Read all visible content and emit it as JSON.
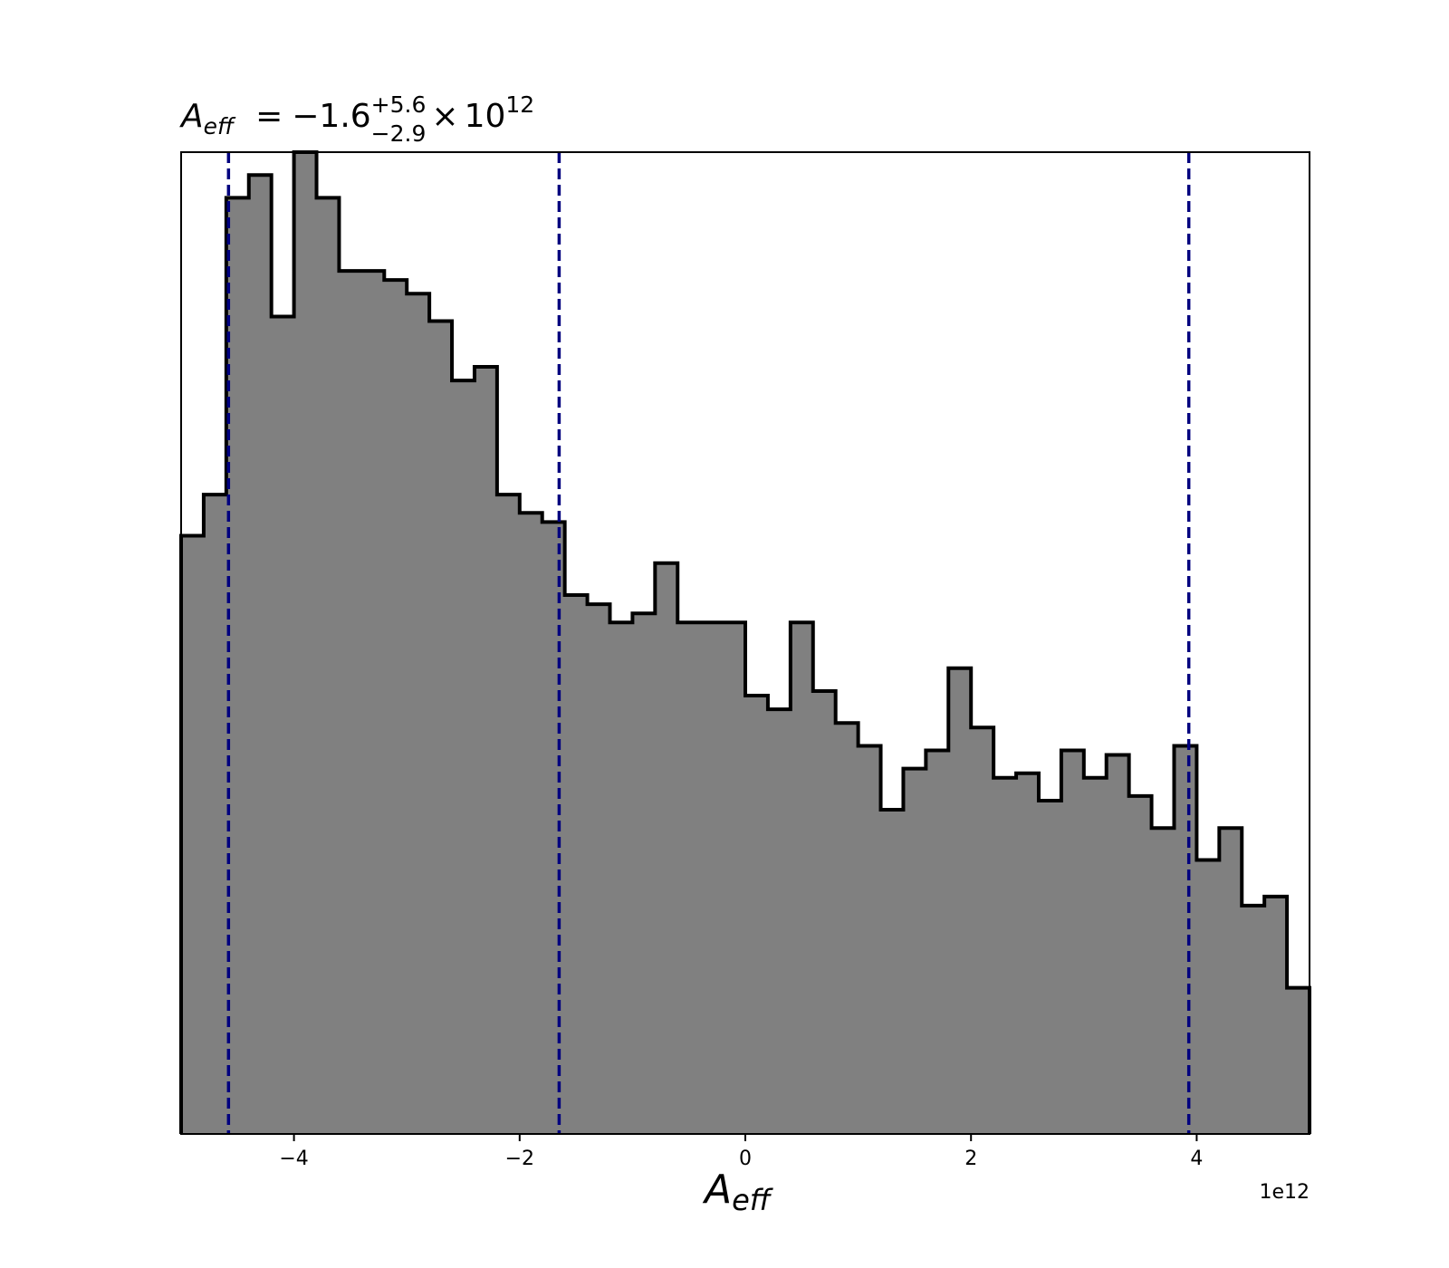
{
  "chart_data": {
    "type": "histogram",
    "title": {
      "symbol": "A",
      "symbol_subscript": "eff",
      "equals": "=",
      "median": "−1.6",
      "err_plus": "+5.6",
      "err_minus": "−2.9",
      "times": "×",
      "base": "10",
      "exponent": "12"
    },
    "xlabel": {
      "symbol": "A",
      "symbol_subscript": "eff"
    },
    "x_offset_label": "1e12",
    "xlim": [
      -5.0,
      5.0
    ],
    "ylim": [
      0,
      215
    ],
    "x_ticks": [
      -4,
      -2,
      0,
      2,
      4
    ],
    "x_tick_labels": [
      "−4",
      "−2",
      "0",
      "2",
      "4"
    ],
    "y_ticks_visible": false,
    "bin_width": 0.2,
    "bin_edges_start": -5.0,
    "counts": [
      131,
      140,
      205,
      210,
      179,
      215,
      205,
      189,
      189,
      187,
      184,
      178,
      165,
      168,
      140,
      136,
      134,
      118,
      116,
      112,
      114,
      125,
      112,
      112,
      112,
      96,
      93,
      112,
      97,
      90,
      85,
      71,
      80,
      84,
      102,
      89,
      78,
      79,
      73,
      84,
      78,
      83,
      74,
      67,
      85,
      60,
      67,
      50,
      52,
      32
    ],
    "fill_color": "#808080",
    "edge_color": "#000000",
    "quantile_lines": [
      -4.58,
      -1.65,
      3.93
    ],
    "quantile_line_color": "#00007f"
  }
}
